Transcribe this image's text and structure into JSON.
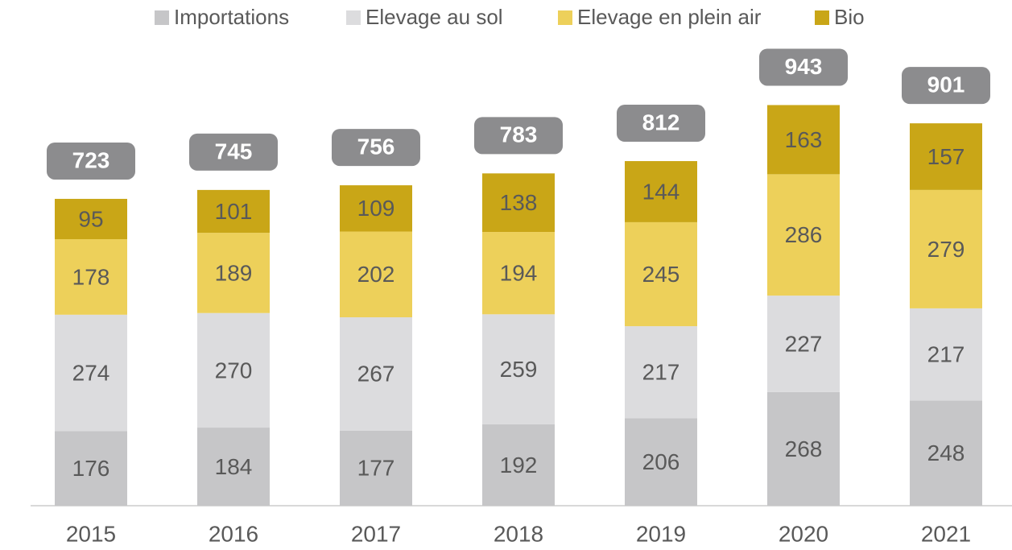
{
  "chart_data": {
    "type": "stacked_bar",
    "categories": [
      "2015",
      "2016",
      "2017",
      "2018",
      "2019",
      "2020",
      "2021"
    ],
    "series": [
      {
        "name": "Importations",
        "color": "#c6c6c8",
        "values": [
          176,
          184,
          177,
          192,
          206,
          268,
          248
        ]
      },
      {
        "name": "Elevage au sol",
        "color": "#dcdcde",
        "values": [
          274,
          270,
          267,
          259,
          217,
          227,
          217
        ]
      },
      {
        "name": "Elevage en plein air",
        "color": "#edd05a",
        "values": [
          178,
          189,
          202,
          194,
          245,
          286,
          279
        ]
      },
      {
        "name": "Bio",
        "color": "#c9a617",
        "values": [
          95,
          101,
          109,
          138,
          144,
          163,
          157
        ]
      }
    ],
    "totals": [
      723,
      745,
      756,
      783,
      812,
      943,
      901
    ],
    "total_label_color": "#8c8c8e",
    "legend": "top"
  }
}
